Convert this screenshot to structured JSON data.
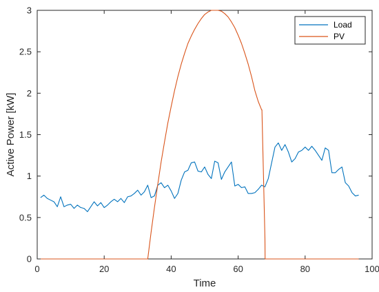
{
  "chart_data": {
    "type": "line",
    "xlabel": "Time",
    "ylabel": "Active Power [kW]",
    "xlim": [
      0,
      100
    ],
    "ylim": [
      0,
      3
    ],
    "xticks": [
      "0",
      "20",
      "40",
      "60",
      "80",
      "100"
    ],
    "yticks": [
      "0",
      "0.5",
      "1",
      "1.5",
      "2",
      "2.5",
      "3"
    ],
    "grid": false,
    "legend_position": "top-right",
    "series": [
      {
        "name": "Load",
        "color": "#0072BD",
        "x": [
          1,
          2,
          3,
          4,
          5,
          6,
          7,
          8,
          9,
          10,
          11,
          12,
          13,
          14,
          15,
          16,
          17,
          18,
          19,
          20,
          21,
          22,
          23,
          24,
          25,
          26,
          27,
          28,
          29,
          30,
          31,
          32,
          33,
          34,
          35,
          36,
          37,
          38,
          39,
          40,
          41,
          42,
          43,
          44,
          45,
          46,
          47,
          48,
          49,
          50,
          51,
          52,
          53,
          54,
          55,
          56,
          57,
          58,
          59,
          60,
          61,
          62,
          63,
          64,
          65,
          66,
          67,
          68,
          69,
          70,
          71,
          72,
          73,
          74,
          75,
          76,
          77,
          78,
          79,
          80,
          81,
          82,
          83,
          84,
          85,
          86,
          87,
          88,
          89,
          90,
          91,
          92,
          93,
          94,
          95,
          96
        ],
        "y": [
          0.74,
          0.77,
          0.73,
          0.71,
          0.69,
          0.63,
          0.75,
          0.63,
          0.65,
          0.66,
          0.61,
          0.65,
          0.62,
          0.61,
          0.57,
          0.63,
          0.69,
          0.64,
          0.68,
          0.62,
          0.65,
          0.69,
          0.72,
          0.69,
          0.73,
          0.68,
          0.75,
          0.76,
          0.79,
          0.83,
          0.77,
          0.81,
          0.89,
          0.74,
          0.76,
          0.89,
          0.92,
          0.86,
          0.89,
          0.82,
          0.73,
          0.79,
          0.95,
          1.05,
          1.07,
          1.16,
          1.17,
          1.06,
          1.05,
          1.11,
          1.02,
          0.97,
          1.18,
          1.16,
          0.96,
          1.05,
          1.11,
          1.17,
          0.88,
          0.9,
          0.86,
          0.87,
          0.79,
          0.79,
          0.8,
          0.84,
          0.89,
          0.87,
          0.97,
          1.16,
          1.35,
          1.4,
          1.31,
          1.38,
          1.29,
          1.17,
          1.21,
          1.29,
          1.31,
          1.35,
          1.31,
          1.36,
          1.31,
          1.25,
          1.19,
          1.34,
          1.31,
          1.04,
          1.04,
          1.08,
          1.11,
          0.92,
          0.88,
          0.8,
          0.76,
          0.77
        ]
      },
      {
        "name": "PV",
        "color": "#D95319",
        "x": [
          0,
          33,
          34,
          35,
          36,
          37,
          38,
          39,
          40,
          41,
          42,
          43,
          44,
          45,
          46,
          47,
          48,
          49,
          50,
          51,
          52,
          53,
          54,
          55,
          56,
          57,
          58,
          59,
          60,
          61,
          62,
          63,
          64,
          65,
          66,
          67,
          67.1,
          68,
          68.05,
          96
        ],
        "y": [
          0,
          0,
          0.32,
          0.62,
          0.9,
          1.17,
          1.41,
          1.64,
          1.84,
          2.03,
          2.2,
          2.35,
          2.48,
          2.6,
          2.69,
          2.77,
          2.84,
          2.9,
          2.95,
          2.98,
          3.0,
          3.0,
          3.0,
          2.99,
          2.96,
          2.92,
          2.86,
          2.79,
          2.7,
          2.6,
          2.48,
          2.35,
          2.2,
          2.03,
          1.9,
          1.8,
          1.8,
          0.25,
          0,
          0
        ]
      }
    ]
  }
}
